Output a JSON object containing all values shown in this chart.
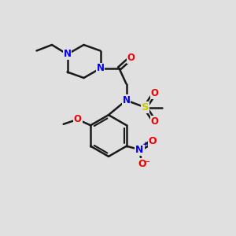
{
  "bg_color": "#e0e0e0",
  "bond_color": "#1a1a1a",
  "N_color": "#0000ee",
  "O_color": "#ee0000",
  "S_color": "#cccc00",
  "bond_width": 1.8,
  "figsize": [
    3.0,
    3.0
  ],
  "dpi": 100,
  "xlim": [
    0,
    10
  ],
  "ylim": [
    0,
    10
  ]
}
